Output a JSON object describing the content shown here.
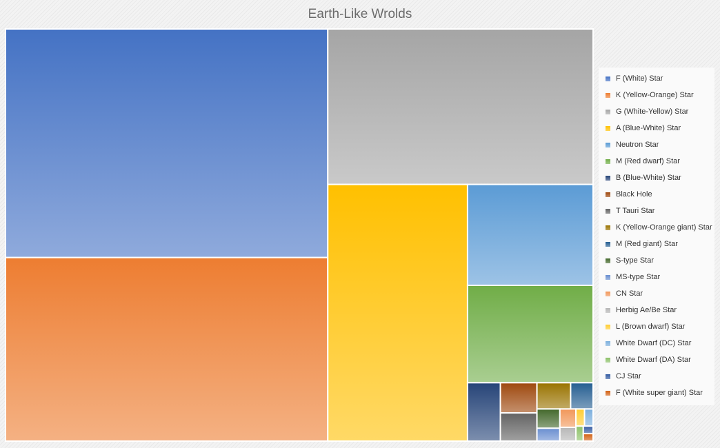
{
  "chart_data": {
    "type": "treemap",
    "title": "Earth-Like Wrolds",
    "legend_position": "right",
    "series": [
      {
        "name": "F (White) Star",
        "value": 1000,
        "color": "#4472c4"
      },
      {
        "name": "K (Yellow-Orange) Star",
        "value": 803,
        "color": "#ed7d31"
      },
      {
        "name": "G (White-Yellow) Star",
        "value": 560,
        "color": "#a5a5a5"
      },
      {
        "name": "A (Blue-White) Star",
        "value": 487,
        "color": "#ffc000"
      },
      {
        "name": "Neutron Star",
        "value": 172,
        "color": "#5b9bd5"
      },
      {
        "name": "M (Red dwarf) Star",
        "value": 166,
        "color": "#70ad47"
      },
      {
        "name": "B (Blue-White) Star",
        "value": 26,
        "color": "#264478"
      },
      {
        "name": "Black Hole",
        "value": 15,
        "color": "#9e480e"
      },
      {
        "name": "T Tauri Star",
        "value": 14,
        "color": "#636363"
      },
      {
        "name": "K (Yellow-Orange giant) Star",
        "value": 12,
        "color": "#997300"
      },
      {
        "name": "M (Red giant) Star",
        "value": 8,
        "color": "#255e91"
      },
      {
        "name": "S-type Star",
        "value": 6,
        "color": "#43682b"
      },
      {
        "name": "MS-type Star",
        "value": 4,
        "color": "#698ed0"
      },
      {
        "name": "CN Star",
        "value": 4,
        "color": "#f1975a"
      },
      {
        "name": "Herbig Ae/Be Star",
        "value": 3,
        "color": "#b7b7b7"
      },
      {
        "name": "L (Brown dwarf) Star",
        "value": 2,
        "color": "#ffcd33"
      },
      {
        "name": "White Dwarf (DC) Star",
        "value": 2,
        "color": "#7cafdd"
      },
      {
        "name": "White Dwarf (DA) Star",
        "value": 1.5,
        "color": "#8cc168"
      },
      {
        "name": "CJ Star",
        "value": 1,
        "color": "#335aa1"
      },
      {
        "name": "F (White super giant) Star",
        "value": 1,
        "color": "#d26012"
      }
    ]
  }
}
